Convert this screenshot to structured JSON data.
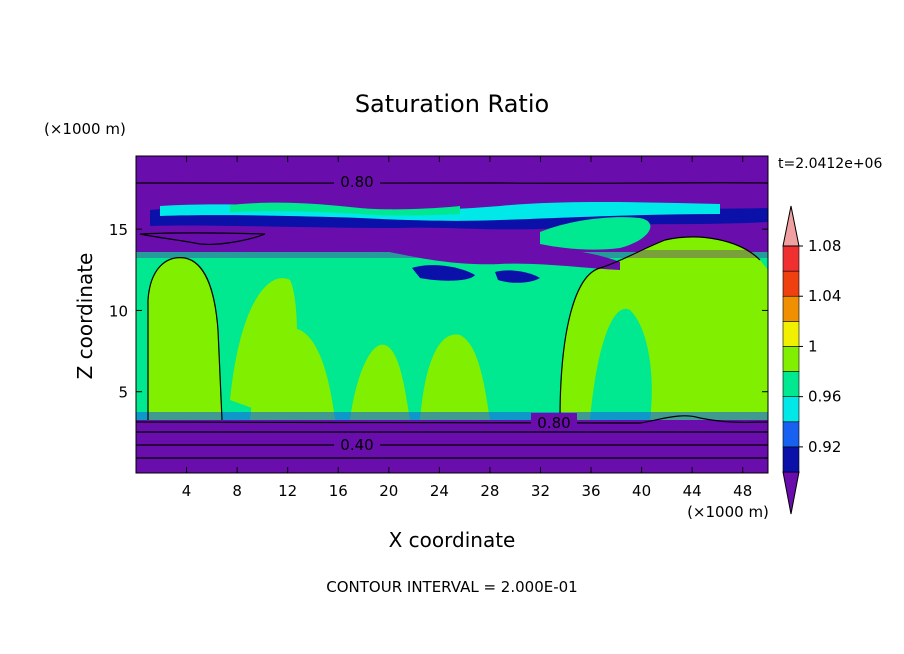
{
  "chart_data": {
    "type": "heatmap",
    "title": "Saturation Ratio",
    "xlabel": "X coordinate",
    "ylabel": "Z coordinate",
    "x_unit": "(×1000 m)",
    "z_unit": "(×1000 m)",
    "time_label": "t=2.0412e+06",
    "footer": "CONTOUR INTERVAL = 2.000E-01",
    "xlim": [
      0,
      50
    ],
    "ylim": [
      0,
      19.5
    ],
    "xticks": [
      4,
      8,
      12,
      16,
      20,
      24,
      28,
      32,
      36,
      40,
      44,
      48
    ],
    "yticks": [
      5,
      10,
      15
    ],
    "colorbar": {
      "levels": [
        0.92,
        0.96,
        1,
        1.04,
        1.08
      ],
      "labels": [
        "0.92",
        "0.96",
        "1",
        "1.04",
        "1.08"
      ],
      "colors": [
        "#6a0dad",
        "#0a10a8",
        "#1860f0",
        "#00e8e8",
        "#00e890",
        "#80f000",
        "#f0f000",
        "#f09000",
        "#f04010",
        "#f03030",
        "#f0a0a0"
      ]
    },
    "contour_labels": [
      {
        "text": "0.80",
        "x": 17.5,
        "z": 18.1
      },
      {
        "text": "0.80",
        "x": 34.5,
        "z": 3.0
      },
      {
        "text": "0.40",
        "x": 17.5,
        "z": 1.8
      }
    ],
    "bands": [
      {
        "z": [
          0,
          3.2
        ],
        "level": "<0.92"
      },
      {
        "z": [
          3.2,
          15.0
        ],
        "level": "0.96-1.04 (mixed)"
      },
      {
        "z": [
          15.0,
          16.0
        ],
        "level": "<0.92"
      },
      {
        "z": [
          16.0,
          17.5
        ],
        "level": "0.92-1.0 (mixed)"
      },
      {
        "z": [
          17.5,
          19.5
        ],
        "level": "<0.92"
      }
    ]
  }
}
